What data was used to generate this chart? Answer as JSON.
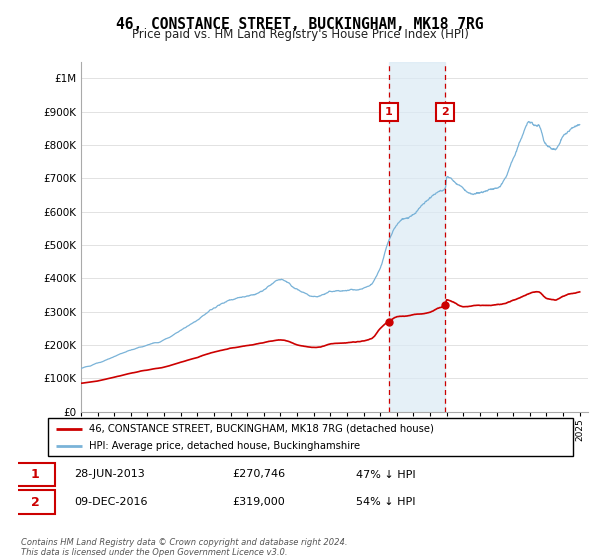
{
  "title": "46, CONSTANCE STREET, BUCKINGHAM, MK18 7RG",
  "subtitle": "Price paid vs. HM Land Registry's House Price Index (HPI)",
  "legend_line1": "46, CONSTANCE STREET, BUCKINGHAM, MK18 7RG (detached house)",
  "legend_line2": "HPI: Average price, detached house, Buckinghamshire",
  "transaction1_date": "28-JUN-2013",
  "transaction1_price": "£270,746",
  "transaction1_hpi": "47% ↓ HPI",
  "transaction1_year": 2013.5,
  "transaction2_date": "09-DEC-2016",
  "transaction2_price": "£319,000",
  "transaction2_hpi": "54% ↓ HPI",
  "transaction2_year": 2016.92,
  "footnote": "Contains HM Land Registry data © Crown copyright and database right 2024.\nThis data is licensed under the Open Government Licence v3.0.",
  "hpi_color": "#7ab3d8",
  "price_color": "#cc0000",
  "vline_color": "#cc0000",
  "shade_color": "#daeaf5",
  "ylim": [
    0,
    1050000
  ],
  "xlim_start": 1995.0,
  "xlim_end": 2025.5
}
